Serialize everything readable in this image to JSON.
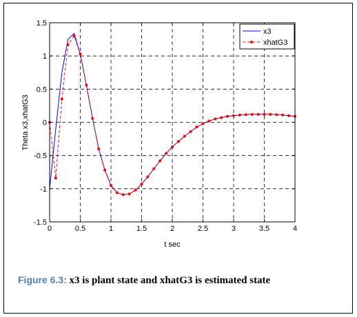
{
  "chart_data": {
    "type": "line",
    "xlabel": "t sec",
    "ylabel": "Theta x3,xhatG3",
    "xlim": [
      0,
      4
    ],
    "ylim": [
      -1.5,
      1.5
    ],
    "x_ticks": [
      "0",
      "0.5",
      "1",
      "1.5",
      "2",
      "2.5",
      "3",
      "3.5",
      "4"
    ],
    "y_ticks": [
      "-1.5",
      "-1",
      "-0.5",
      "0",
      "0.5",
      "1",
      "1.5"
    ],
    "grid": true,
    "legend_position": "top-right",
    "series": [
      {
        "name": "x3",
        "color": "#0000ff",
        "style": "solid",
        "markers": false,
        "x": [
          0,
          0.1,
          0.2,
          0.3,
          0.4,
          0.5,
          0.6,
          0.7,
          0.8,
          0.9,
          1.0,
          1.1,
          1.2,
          1.3,
          1.4,
          1.5,
          1.6,
          1.7,
          1.8,
          1.9,
          2.0,
          2.1,
          2.2,
          2.3,
          2.4,
          2.5,
          2.6,
          2.7,
          2.8,
          2.9,
          3.0,
          3.1,
          3.2,
          3.3,
          3.4,
          3.5,
          3.6,
          3.7,
          3.8,
          3.9,
          4.0
        ],
        "y": [
          -1.0,
          -0.1,
          0.75,
          1.25,
          1.34,
          1.03,
          0.56,
          0.06,
          -0.4,
          -0.72,
          -0.95,
          -1.06,
          -1.09,
          -1.08,
          -1.02,
          -0.93,
          -0.82,
          -0.7,
          -0.58,
          -0.47,
          -0.37,
          -0.29,
          -0.21,
          -0.14,
          -0.07,
          -0.02,
          0.02,
          0.05,
          0.07,
          0.09,
          0.1,
          0.11,
          0.115,
          0.12,
          0.12,
          0.12,
          0.12,
          0.115,
          0.11,
          0.1,
          0.09
        ]
      },
      {
        "name": "xhatG3",
        "color": "#ff0000",
        "style": "dashed",
        "markers": true,
        "x": [
          0,
          0.1,
          0.2,
          0.3,
          0.4,
          0.5,
          0.6,
          0.7,
          0.8,
          0.9,
          1.0,
          1.1,
          1.2,
          1.3,
          1.4,
          1.5,
          1.6,
          1.7,
          1.8,
          1.9,
          2.0,
          2.1,
          2.2,
          2.3,
          2.4,
          2.5,
          2.6,
          2.7,
          2.8,
          2.9,
          3.0,
          3.1,
          3.2,
          3.3,
          3.4,
          3.5,
          3.6,
          3.7,
          3.8,
          3.9,
          4.0
        ],
        "y": [
          0,
          -0.84,
          0.35,
          1.17,
          1.3,
          1.03,
          0.56,
          0.06,
          -0.4,
          -0.72,
          -0.95,
          -1.06,
          -1.09,
          -1.08,
          -1.02,
          -0.93,
          -0.82,
          -0.7,
          -0.58,
          -0.47,
          -0.37,
          -0.29,
          -0.21,
          -0.14,
          -0.07,
          -0.02,
          0.02,
          0.05,
          0.07,
          0.09,
          0.1,
          0.11,
          0.115,
          0.12,
          0.12,
          0.12,
          0.12,
          0.115,
          0.11,
          0.1,
          0.09
        ]
      }
    ]
  },
  "caption": {
    "label": "Figure 6.3:",
    "text": " x3 is plant state and xhatG3 is estimated state"
  }
}
